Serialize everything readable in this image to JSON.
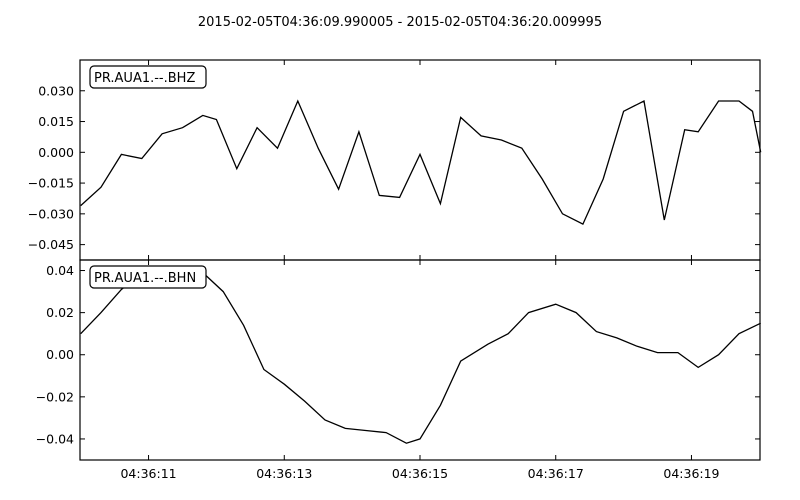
{
  "figure": {
    "title": "2015-02-05T04:36:09.990005  -  2015-02-05T04:36:20.009995"
  },
  "chart_data": [
    {
      "type": "line",
      "series": [
        {
          "name": "PR.AUA1.--.BHZ",
          "color": "#000000"
        }
      ],
      "legend_placement": "top-left",
      "grid": false,
      "xlim": [
        "04:36:09.990",
        "04:36:20.010"
      ],
      "ylim": [
        -0.0525,
        0.045
      ],
      "yticks": [
        -0.045,
        -0.03,
        -0.015,
        0.0,
        0.015,
        0.03
      ],
      "ytick_labels": [
        "−0.045",
        "−0.030",
        "−0.015",
        "0.000",
        "0.015",
        "0.030"
      ],
      "x_seconds_after_04_36_10": [
        0.0,
        0.3,
        0.6,
        0.9,
        1.2,
        1.5,
        1.8,
        2.0,
        2.3,
        2.6,
        2.9,
        3.2,
        3.5,
        3.8,
        4.1,
        4.4,
        4.7,
        5.0,
        5.3,
        5.6,
        5.9,
        6.2,
        6.5,
        6.8,
        7.1,
        7.4,
        7.7,
        8.0,
        8.3,
        8.6,
        8.9,
        9.1,
        9.4,
        9.7,
        9.9,
        10.02
      ],
      "y": [
        -0.026,
        -0.017,
        -0.001,
        -0.003,
        0.009,
        0.012,
        0.018,
        0.016,
        -0.008,
        0.012,
        0.002,
        0.025,
        0.002,
        -0.018,
        0.01,
        -0.021,
        -0.022,
        -0.001,
        -0.025,
        0.017,
        0.008,
        0.006,
        0.002,
        -0.013,
        -0.03,
        -0.035,
        -0.013,
        0.02,
        0.025,
        -0.033,
        0.011,
        0.01,
        0.025,
        0.025,
        0.02,
        0.0
      ],
      "x_axis_shared_with_panel_below": true
    },
    {
      "type": "line",
      "series": [
        {
          "name": "PR.AUA1.--.BHN",
          "color": "#000000"
        }
      ],
      "legend_placement": "top-left",
      "grid": false,
      "xlim": [
        "04:36:09.990",
        "04:36:20.010"
      ],
      "ylim": [
        -0.05,
        0.045
      ],
      "yticks": [
        -0.04,
        -0.02,
        0.0,
        0.02,
        0.04
      ],
      "ytick_labels": [
        "−0.04",
        "−0.02",
        "0.00",
        "0.02",
        "0.04"
      ],
      "xticks": [
        "04:36:11",
        "04:36:13",
        "04:36:15",
        "04:36:17",
        "04:36:19"
      ],
      "xtick_labels": [
        "04:36:11",
        "04:36:13",
        "04:36:15",
        "04:36:17",
        "04:36:19"
      ],
      "x_seconds_after_04_36_10": [
        0.0,
        0.3,
        0.6,
        0.9,
        1.2,
        1.5,
        1.8,
        2.1,
        2.4,
        2.7,
        3.0,
        3.3,
        3.6,
        3.9,
        4.2,
        4.5,
        4.8,
        5.0,
        5.3,
        5.6,
        6.0,
        6.3,
        6.6,
        7.0,
        7.3,
        7.6,
        7.9,
        8.2,
        8.5,
        8.8,
        9.1,
        9.4,
        9.7,
        10.02
      ],
      "y": [
        0.01,
        0.02,
        0.031,
        0.039,
        0.038,
        0.037,
        0.039,
        0.03,
        0.014,
        -0.007,
        -0.014,
        -0.022,
        -0.031,
        -0.035,
        -0.036,
        -0.037,
        -0.042,
        -0.04,
        -0.024,
        -0.003,
        0.005,
        0.01,
        0.02,
        0.024,
        0.02,
        0.011,
        0.008,
        0.004,
        0.001,
        0.001,
        -0.006,
        0.0,
        0.01,
        0.015
      ]
    }
  ]
}
